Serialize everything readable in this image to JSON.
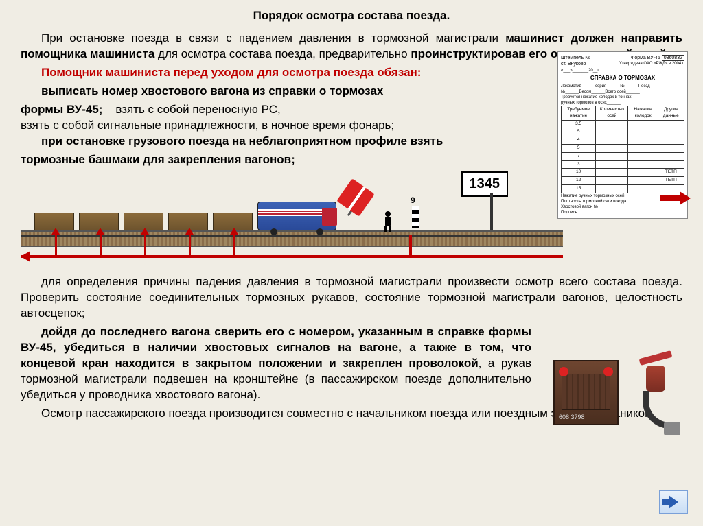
{
  "title": "Порядок осмотра состава поезда.",
  "para1_pre": "При остановке поезда в связи с падением давления в тормозной магистрали ",
  "para1_b1": "машинист должен направить помощника машиниста",
  "para1_mid": " для осмотра состава поезда, предварительно ",
  "para1_b2": "проинструктировав его о порядке действий.",
  "red1": "Помощник машиниста перед уходом для осмотра поезда обязан:",
  "bl1_b1": "выписать номер хвостового вагона из справки о тормозах",
  "bl1_l2a": "формы ВУ-45;",
  "bl1_l2b": "    взять с собой переносную РС,",
  "bl1_l3": "взять с собой сигнальные принадлежности, в ночное время фонарь;",
  "bl1_b2": "при остановке грузового поезда на неблагоприятном профиле взять",
  "bl1_l5": "тормозные башмаки для закрепления вагонов;",
  "sign_1345": "1345",
  "para2": "для определения причины падения давления в тормозной магистрали произвести осмотр всего состава поезда. Проверить состояние соединительных тормозных рукавов, состояние тормозной магистрали вагонов, целостность автосцепок;",
  "bl2_b1": "дойдя до последнего вагона сверить его с номером, указанным в справке формы  ВУ-45, убедиться в наличии хвостовых сигналов на вагоне, а также в том, что концевой кран находится в закрытом положении и закреплен проволокой",
  "bl2_tail": ", а рукав тормозной магистрали подвешен на кронштейне (в пассажирском поезде дополнительно убедиться у проводника хвостового вагона).",
  "para3": "Осмотр пассажирского поезда производится совместно с начальником поезда или поездным электромехаником.",
  "wagon_number": "608 3798",
  "form": {
    "station": "ст. Внуково",
    "title": "СПРАВКА О ТОРМОЗАХ",
    "form_no": "Форма ВУ-45",
    "code": "0360832",
    "col1": "Требуемое нажатие",
    "col2": "Количество осей",
    "col3": "Нажатие колодок",
    "col4": "Другие данные",
    "rows": [
      "3,5",
      "5",
      "4",
      "5",
      "7",
      "3",
      "10",
      "12",
      "15"
    ],
    "r_tetp_a": "ТЕТП",
    "r_tetp_b": "ТЕТП",
    "foot1": "Нажатие ручных тормозных осей",
    "foot2": "Плотность тормозной сети поезда",
    "foot3": "Хвостовой вагон №",
    "foot4": "Подпись"
  }
}
